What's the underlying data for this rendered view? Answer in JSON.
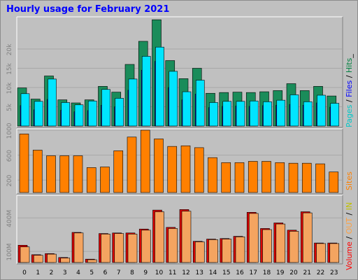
{
  "title": "Hourly usage for February 2021",
  "colors": {
    "background": "#c0c0c0",
    "title": "#0000ff",
    "pages": "#00ffff",
    "files": "#0000ff",
    "hits": "#008040",
    "visits": "#ff8000",
    "volume": "#ff0000",
    "out": "#808000",
    "in": "#8fbc8f",
    "tick": "#808080"
  },
  "legends": {
    "top": {
      "pages": "Pages",
      "sep1": " / ",
      "files": "Files",
      "sep2": " / ",
      "hits": "Hits",
      "tail": "_"
    },
    "middle": {
      "visits": "Sites"
    },
    "bottom": {
      "volume": "Volume",
      "sep1": " / ",
      "out": "OUT",
      "sep2": " / ",
      "in": "IN"
    }
  },
  "chart_data": [
    {
      "type": "bar",
      "name": "hits-files-pages",
      "categories": [
        "0",
        "1",
        "2",
        "3",
        "4",
        "5",
        "6",
        "7",
        "8",
        "9",
        "10",
        "11",
        "12",
        "13",
        "14",
        "15",
        "16",
        "17",
        "18",
        "19",
        "20",
        "21",
        "22",
        "23"
      ],
      "yticks": [
        5000,
        10000,
        15000,
        20000
      ],
      "ytick_labels": [
        "5k",
        "10k",
        "15k",
        "20k"
      ],
      "ylim": [
        0,
        28000
      ],
      "series": [
        {
          "name": "Hits",
          "values": [
            9900,
            7000,
            13000,
            6800,
            6000,
            6800,
            10300,
            8800,
            16000,
            22000,
            27600,
            17000,
            12300,
            15000,
            8500,
            8700,
            8800,
            8700,
            8900,
            9200,
            11000,
            9200,
            10300,
            7800
          ]
        },
        {
          "name": "Files",
          "values": [
            5300,
            4200,
            6900,
            4100,
            3700,
            4000,
            5400,
            5000,
            9300,
            14500,
            16800,
            10000,
            6800,
            8300,
            4800,
            5100,
            5200,
            5100,
            5300,
            5400,
            5600,
            5400,
            6000,
            4900
          ]
        },
        {
          "name": "Pages",
          "values": [
            8400,
            6400,
            12200,
            6100,
            5500,
            6500,
            9500,
            7200,
            12200,
            18100,
            20500,
            14200,
            8900,
            11900,
            6100,
            6400,
            6400,
            6500,
            6300,
            6700,
            8100,
            6300,
            8000,
            5900
          ]
        }
      ]
    },
    {
      "type": "bar",
      "name": "sites",
      "categories": [
        "0",
        "1",
        "2",
        "3",
        "4",
        "5",
        "6",
        "7",
        "8",
        "9",
        "10",
        "11",
        "12",
        "13",
        "14",
        "15",
        "16",
        "17",
        "18",
        "19",
        "20",
        "21",
        "22",
        "23"
      ],
      "yticks": [
        200,
        600,
        1000
      ],
      "ytick_labels": [
        "200",
        "600",
        "1000"
      ],
      "ylim": [
        0,
        1000
      ],
      "series": [
        {
          "name": "Sites",
          "values": [
            940,
            680,
            590,
            590,
            590,
            400,
            410,
            670,
            890,
            1000,
            860,
            740,
            750,
            720,
            560,
            480,
            480,
            500,
            500,
            480,
            470,
            470,
            460,
            330
          ]
        }
      ]
    },
    {
      "type": "bar",
      "name": "volume",
      "categories": [
        "0",
        "1",
        "2",
        "3",
        "4",
        "5",
        "6",
        "7",
        "8",
        "9",
        "10",
        "11",
        "12",
        "13",
        "14",
        "15",
        "16",
        "17",
        "18",
        "19",
        "20",
        "21",
        "22",
        "23"
      ],
      "yticks": [
        100,
        400
      ],
      "ytick_labels": [
        "100M",
        "400M"
      ],
      "ylim": [
        0,
        590
      ],
      "series": [
        {
          "name": "Volume",
          "values": [
            155,
            70,
            80,
            45,
            270,
            30,
            260,
            265,
            265,
            300,
            470,
            315,
            475,
            190,
            210,
            215,
            235,
            450,
            305,
            355,
            290,
            455,
            175,
            175
          ]
        },
        {
          "name": "IN",
          "values": [
            140,
            65,
            75,
            40,
            265,
            25,
            255,
            260,
            255,
            290,
            455,
            305,
            460,
            185,
            205,
            210,
            230,
            440,
            295,
            345,
            280,
            445,
            170,
            170
          ]
        }
      ]
    }
  ]
}
